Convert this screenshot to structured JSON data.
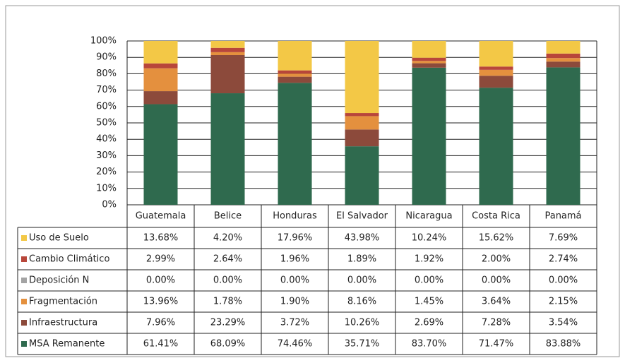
{
  "chart_data": {
    "type": "stacked_bar",
    "categories": [
      "Guatemala",
      "Belice",
      "Honduras",
      "El Salvador",
      "Nicaragua",
      "Costa Rica",
      "Panamá"
    ],
    "series": [
      {
        "name": "Uso de Suelo",
        "color": "#f3c846",
        "values": [
          13.68,
          4.2,
          17.96,
          43.98,
          10.24,
          15.62,
          7.69
        ],
        "value_labels": [
          "13.68%",
          "4.20%",
          "17.96%",
          "43.98%",
          "10.24%",
          "15.62%",
          "7.69%"
        ]
      },
      {
        "name": "Cambio Climático",
        "color": "#b8463a",
        "values": [
          2.99,
          2.64,
          1.96,
          1.89,
          1.92,
          2.0,
          2.74
        ],
        "value_labels": [
          "2.99%",
          "2.64%",
          "1.96%",
          "1.89%",
          "1.92%",
          "2.00%",
          "2.74%"
        ]
      },
      {
        "name": "Deposición N",
        "color": "#a3a3a3",
        "values": [
          0.0,
          0.0,
          0.0,
          0.0,
          0.0,
          0.0,
          0.0
        ],
        "value_labels": [
          "0.00%",
          "0.00%",
          "0.00%",
          "0.00%",
          "0.00%",
          "0.00%",
          "0.00%"
        ]
      },
      {
        "name": "Fragmentación",
        "color": "#e4903e",
        "values": [
          13.96,
          1.78,
          1.9,
          8.16,
          1.45,
          3.64,
          2.15
        ],
        "value_labels": [
          "13.96%",
          "1.78%",
          "1.90%",
          "8.16%",
          "1.45%",
          "3.64%",
          "2.15%"
        ]
      },
      {
        "name": "Infraestructura",
        "color": "#8c4a3b",
        "values": [
          7.96,
          23.29,
          3.72,
          10.26,
          2.69,
          7.28,
          3.54
        ],
        "value_labels": [
          "7.96%",
          "23.29%",
          "3.72%",
          "10.26%",
          "2.69%",
          "7.28%",
          "3.54%"
        ]
      },
      {
        "name": "MSA Remanente",
        "color": "#2f6a4e",
        "values": [
          61.41,
          68.09,
          74.46,
          35.71,
          83.7,
          71.47,
          83.88
        ],
        "value_labels": [
          "61.41%",
          "68.09%",
          "74.46%",
          "35.71%",
          "83.70%",
          "71.47%",
          "83.88%"
        ]
      }
    ],
    "ylim": [
      0,
      100
    ],
    "yticks": [
      {
        "value": 0,
        "label": "0%"
      },
      {
        "value": 10,
        "label": "10%"
      },
      {
        "value": 20,
        "label": "20%"
      },
      {
        "value": 30,
        "label": "30%"
      },
      {
        "value": 40,
        "label": "40%"
      },
      {
        "value": 50,
        "label": "50%"
      },
      {
        "value": 60,
        "label": "60%"
      },
      {
        "value": 70,
        "label": "70%"
      },
      {
        "value": 80,
        "label": "80%"
      },
      {
        "value": 90,
        "label": "90%"
      },
      {
        "value": 100,
        "label": "100%"
      }
    ],
    "grid": true
  }
}
